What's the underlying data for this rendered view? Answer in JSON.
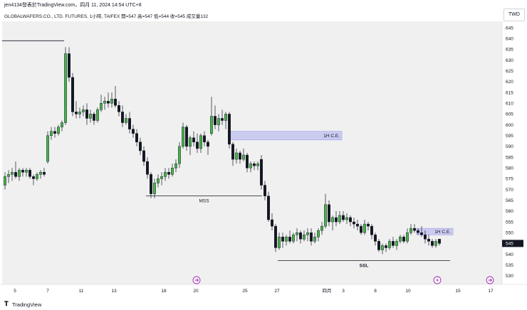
{
  "header": {
    "publisher": "jen4134發表於TradingView.com，四月 11, 2024 14:54 UTC+8",
    "symbol_line": "GLOBALWAFERS.CO., LTD. FUTURES, 1小時, TAIFEX  開=547  高=547  低=544  收=545  成交量132",
    "currency": "TWD"
  },
  "footer": {
    "brand": "TradingView",
    "logo": "tradingview-logo-icon"
  },
  "colors": {
    "up": "#4caf50",
    "down": "#131722",
    "background": "#f0f0f0",
    "zone": "#9e9ef0",
    "price_tag": "#131722"
  },
  "chart_data": {
    "type": "candlestick",
    "ylim": [
      526,
      648
    ],
    "yticks": [
      530,
      535,
      540,
      545,
      550,
      555,
      560,
      565,
      570,
      575,
      580,
      585,
      590,
      595,
      600,
      605,
      610,
      615,
      620,
      625,
      630,
      635,
      640,
      645
    ],
    "xticks": [
      "5",
      "7",
      "11",
      "13",
      "18",
      "20",
      "25",
      "27",
      "四月",
      "3",
      "8",
      "10",
      "15",
      "17"
    ],
    "last_price": 545,
    "last_price_label": "545",
    "levels": [
      {
        "name": "prior-high",
        "y": 639,
        "x_start": 3,
        "x_end": 90,
        "label": ""
      },
      {
        "name": "mss-line",
        "y": 567,
        "x_start": 205,
        "x_end": 368,
        "label": "MSS"
      },
      {
        "name": "ssl-line",
        "y": 537,
        "x_start": 390,
        "x_end": 632,
        "label": "SSL"
      }
    ],
    "zones": [
      {
        "label": "1H C.E.",
        "y_top": 597,
        "y_bottom": 593,
        "x_start": 322,
        "x_end": 480
      },
      {
        "label": "1H C.E.",
        "y_top": 552,
        "y_bottom": 549,
        "x_start": 585,
        "x_end": 636
      }
    ],
    "event_markers": [
      {
        "x": 276,
        "icon": "forward-icon"
      },
      {
        "x": 614,
        "icon": "lightning-icon"
      },
      {
        "x": 688,
        "icon": "forward-icon"
      }
    ],
    "candles": [
      {
        "x": 7,
        "o": 572,
        "h": 578,
        "l": 570,
        "c": 576
      },
      {
        "x": 12,
        "o": 576,
        "h": 579,
        "l": 573,
        "c": 577
      },
      {
        "x": 17,
        "o": 577,
        "h": 580,
        "l": 574,
        "c": 578
      },
      {
        "x": 22,
        "o": 578,
        "h": 583,
        "l": 575,
        "c": 576
      },
      {
        "x": 27,
        "o": 576,
        "h": 580,
        "l": 574,
        "c": 579
      },
      {
        "x": 32,
        "o": 579,
        "h": 580,
        "l": 576,
        "c": 578
      },
      {
        "x": 37,
        "o": 578,
        "h": 580,
        "l": 576,
        "c": 579
      },
      {
        "x": 42,
        "o": 579,
        "h": 580,
        "l": 575,
        "c": 576
      },
      {
        "x": 47,
        "o": 576,
        "h": 577,
        "l": 572,
        "c": 575
      },
      {
        "x": 52,
        "o": 575,
        "h": 578,
        "l": 574,
        "c": 577
      },
      {
        "x": 57,
        "o": 577,
        "h": 579,
        "l": 575,
        "c": 578
      },
      {
        "x": 62,
        "o": 578,
        "h": 580,
        "l": 576,
        "c": 577
      },
      {
        "x": 67,
        "o": 583,
        "h": 597,
        "l": 582,
        "c": 595
      },
      {
        "x": 72,
        "o": 595,
        "h": 599,
        "l": 593,
        "c": 597
      },
      {
        "x": 77,
        "o": 597,
        "h": 599,
        "l": 594,
        "c": 596
      },
      {
        "x": 82,
        "o": 596,
        "h": 600,
        "l": 595,
        "c": 599
      },
      {
        "x": 87,
        "o": 599,
        "h": 602,
        "l": 597,
        "c": 601
      },
      {
        "x": 92,
        "o": 601,
        "h": 636,
        "l": 600,
        "c": 633
      },
      {
        "x": 97,
        "o": 633,
        "h": 636,
        "l": 620,
        "c": 622
      },
      {
        "x": 102,
        "o": 622,
        "h": 624,
        "l": 604,
        "c": 606
      },
      {
        "x": 107,
        "o": 606,
        "h": 611,
        "l": 603,
        "c": 605
      },
      {
        "x": 112,
        "o": 605,
        "h": 608,
        "l": 603,
        "c": 606
      },
      {
        "x": 117,
        "o": 606,
        "h": 609,
        "l": 604,
        "c": 607
      },
      {
        "x": 122,
        "o": 607,
        "h": 610,
        "l": 600,
        "c": 603
      },
      {
        "x": 127,
        "o": 603,
        "h": 607,
        "l": 601,
        "c": 605
      },
      {
        "x": 132,
        "o": 605,
        "h": 606,
        "l": 600,
        "c": 602
      },
      {
        "x": 137,
        "o": 602,
        "h": 608,
        "l": 601,
        "c": 607
      },
      {
        "x": 142,
        "o": 607,
        "h": 614,
        "l": 606,
        "c": 610
      },
      {
        "x": 147,
        "o": 610,
        "h": 613,
        "l": 607,
        "c": 611
      },
      {
        "x": 152,
        "o": 611,
        "h": 615,
        "l": 608,
        "c": 610
      },
      {
        "x": 157,
        "o": 610,
        "h": 615,
        "l": 608,
        "c": 612
      },
      {
        "x": 162,
        "o": 612,
        "h": 618,
        "l": 608,
        "c": 609
      },
      {
        "x": 167,
        "o": 609,
        "h": 611,
        "l": 604,
        "c": 606
      },
      {
        "x": 172,
        "o": 606,
        "h": 609,
        "l": 599,
        "c": 601
      },
      {
        "x": 177,
        "o": 601,
        "h": 605,
        "l": 600,
        "c": 603
      },
      {
        "x": 182,
        "o": 603,
        "h": 606,
        "l": 596,
        "c": 598
      },
      {
        "x": 187,
        "o": 598,
        "h": 600,
        "l": 594,
        "c": 596
      },
      {
        "x": 192,
        "o": 596,
        "h": 598,
        "l": 590,
        "c": 592
      },
      {
        "x": 197,
        "o": 592,
        "h": 594,
        "l": 586,
        "c": 588
      },
      {
        "x": 202,
        "o": 588,
        "h": 590,
        "l": 581,
        "c": 583
      },
      {
        "x": 207,
        "o": 583,
        "h": 585,
        "l": 575,
        "c": 577
      },
      {
        "x": 212,
        "o": 577,
        "h": 578,
        "l": 566,
        "c": 568
      },
      {
        "x": 217,
        "o": 568,
        "h": 575,
        "l": 566,
        "c": 573
      },
      {
        "x": 222,
        "o": 573,
        "h": 577,
        "l": 571,
        "c": 575
      },
      {
        "x": 227,
        "o": 575,
        "h": 578,
        "l": 572,
        "c": 576
      },
      {
        "x": 232,
        "o": 576,
        "h": 580,
        "l": 574,
        "c": 578
      },
      {
        "x": 237,
        "o": 578,
        "h": 580,
        "l": 575,
        "c": 577
      },
      {
        "x": 242,
        "o": 577,
        "h": 582,
        "l": 576,
        "c": 580
      },
      {
        "x": 247,
        "o": 580,
        "h": 584,
        "l": 578,
        "c": 582
      },
      {
        "x": 252,
        "o": 582,
        "h": 592,
        "l": 580,
        "c": 590
      },
      {
        "x": 257,
        "o": 590,
        "h": 601,
        "l": 589,
        "c": 599
      },
      {
        "x": 262,
        "o": 599,
        "h": 600,
        "l": 588,
        "c": 590
      },
      {
        "x": 267,
        "o": 590,
        "h": 595,
        "l": 586,
        "c": 594
      },
      {
        "x": 272,
        "o": 594,
        "h": 597,
        "l": 590,
        "c": 592
      },
      {
        "x": 277,
        "o": 592,
        "h": 596,
        "l": 587,
        "c": 589
      },
      {
        "x": 282,
        "o": 589,
        "h": 596,
        "l": 587,
        "c": 595
      },
      {
        "x": 287,
        "o": 595,
        "h": 597,
        "l": 590,
        "c": 592
      },
      {
        "x": 292,
        "o": 592,
        "h": 593,
        "l": 586,
        "c": 590
      },
      {
        "x": 297,
        "o": 596,
        "h": 613,
        "l": 595,
        "c": 604
      },
      {
        "x": 302,
        "o": 604,
        "h": 609,
        "l": 598,
        "c": 600
      },
      {
        "x": 307,
        "o": 600,
        "h": 605,
        "l": 597,
        "c": 603
      },
      {
        "x": 312,
        "o": 603,
        "h": 607,
        "l": 600,
        "c": 602
      },
      {
        "x": 317,
        "o": 602,
        "h": 606,
        "l": 598,
        "c": 605
      },
      {
        "x": 322,
        "o": 605,
        "h": 606,
        "l": 589,
        "c": 591
      },
      {
        "x": 327,
        "o": 591,
        "h": 592,
        "l": 581,
        "c": 584
      },
      {
        "x": 332,
        "o": 584,
        "h": 589,
        "l": 582,
        "c": 587
      },
      {
        "x": 337,
        "o": 587,
        "h": 588,
        "l": 582,
        "c": 584
      },
      {
        "x": 342,
        "o": 584,
        "h": 589,
        "l": 583,
        "c": 586
      },
      {
        "x": 347,
        "o": 586,
        "h": 587,
        "l": 578,
        "c": 580
      },
      {
        "x": 352,
        "o": 580,
        "h": 583,
        "l": 578,
        "c": 582
      },
      {
        "x": 357,
        "o": 582,
        "h": 583,
        "l": 579,
        "c": 581
      },
      {
        "x": 362,
        "o": 581,
        "h": 583,
        "l": 579,
        "c": 582
      },
      {
        "x": 367,
        "o": 584,
        "h": 586,
        "l": 570,
        "c": 572
      },
      {
        "x": 372,
        "o": 572,
        "h": 574,
        "l": 565,
        "c": 567
      },
      {
        "x": 377,
        "o": 567,
        "h": 569,
        "l": 555,
        "c": 556
      },
      {
        "x": 382,
        "o": 556,
        "h": 559,
        "l": 551,
        "c": 553
      },
      {
        "x": 387,
        "o": 553,
        "h": 554,
        "l": 541,
        "c": 543
      },
      {
        "x": 392,
        "o": 543,
        "h": 550,
        "l": 542,
        "c": 548
      },
      {
        "x": 397,
        "o": 548,
        "h": 550,
        "l": 543,
        "c": 546
      },
      {
        "x": 402,
        "o": 546,
        "h": 549,
        "l": 544,
        "c": 548
      },
      {
        "x": 407,
        "o": 548,
        "h": 551,
        "l": 545,
        "c": 546
      },
      {
        "x": 412,
        "o": 546,
        "h": 550,
        "l": 545,
        "c": 549
      },
      {
        "x": 417,
        "o": 549,
        "h": 552,
        "l": 546,
        "c": 550
      },
      {
        "x": 422,
        "o": 550,
        "h": 551,
        "l": 545,
        "c": 547
      },
      {
        "x": 427,
        "o": 547,
        "h": 551,
        "l": 546,
        "c": 549
      },
      {
        "x": 432,
        "o": 549,
        "h": 552,
        "l": 546,
        "c": 550
      },
      {
        "x": 437,
        "o": 550,
        "h": 552,
        "l": 544,
        "c": 546
      },
      {
        "x": 442,
        "o": 546,
        "h": 550,
        "l": 545,
        "c": 548
      },
      {
        "x": 447,
        "o": 548,
        "h": 552,
        "l": 546,
        "c": 551
      },
      {
        "x": 452,
        "o": 551,
        "h": 555,
        "l": 549,
        "c": 553
      },
      {
        "x": 457,
        "o": 553,
        "h": 568,
        "l": 552,
        "c": 563
      },
      {
        "x": 462,
        "o": 563,
        "h": 565,
        "l": 553,
        "c": 555
      },
      {
        "x": 467,
        "o": 555,
        "h": 558,
        "l": 551,
        "c": 557
      },
      {
        "x": 472,
        "o": 557,
        "h": 560,
        "l": 553,
        "c": 555
      },
      {
        "x": 477,
        "o": 555,
        "h": 560,
        "l": 554,
        "c": 558
      },
      {
        "x": 482,
        "o": 558,
        "h": 560,
        "l": 555,
        "c": 556
      },
      {
        "x": 487,
        "o": 556,
        "h": 559,
        "l": 554,
        "c": 557
      },
      {
        "x": 492,
        "o": 557,
        "h": 558,
        "l": 553,
        "c": 555
      },
      {
        "x": 497,
        "o": 555,
        "h": 557,
        "l": 552,
        "c": 554
      },
      {
        "x": 502,
        "o": 554,
        "h": 556,
        "l": 551,
        "c": 553
      },
      {
        "x": 507,
        "o": 553,
        "h": 554,
        "l": 549,
        "c": 550
      },
      {
        "x": 512,
        "o": 550,
        "h": 556,
        "l": 549,
        "c": 554
      },
      {
        "x": 517,
        "o": 554,
        "h": 555,
        "l": 551,
        "c": 553
      },
      {
        "x": 522,
        "o": 553,
        "h": 554,
        "l": 547,
        "c": 549
      },
      {
        "x": 527,
        "o": 549,
        "h": 550,
        "l": 544,
        "c": 546
      },
      {
        "x": 532,
        "o": 546,
        "h": 547,
        "l": 541,
        "c": 542
      },
      {
        "x": 537,
        "o": 542,
        "h": 545,
        "l": 540,
        "c": 544
      },
      {
        "x": 542,
        "o": 544,
        "h": 545,
        "l": 541,
        "c": 543
      },
      {
        "x": 547,
        "o": 543,
        "h": 547,
        "l": 542,
        "c": 546
      },
      {
        "x": 552,
        "o": 546,
        "h": 548,
        "l": 543,
        "c": 544
      },
      {
        "x": 557,
        "o": 544,
        "h": 547,
        "l": 542,
        "c": 546
      },
      {
        "x": 562,
        "o": 546,
        "h": 549,
        "l": 545,
        "c": 548
      },
      {
        "x": 567,
        "o": 548,
        "h": 549,
        "l": 545,
        "c": 546
      },
      {
        "x": 572,
        "o": 546,
        "h": 552,
        "l": 545,
        "c": 550
      },
      {
        "x": 577,
        "o": 550,
        "h": 554,
        "l": 549,
        "c": 552
      },
      {
        "x": 582,
        "o": 552,
        "h": 554,
        "l": 550,
        "c": 551
      },
      {
        "x": 587,
        "o": 551,
        "h": 552,
        "l": 549,
        "c": 550
      },
      {
        "x": 592,
        "o": 550,
        "h": 553,
        "l": 548,
        "c": 549
      },
      {
        "x": 597,
        "o": 549,
        "h": 551,
        "l": 545,
        "c": 547
      },
      {
        "x": 602,
        "o": 547,
        "h": 549,
        "l": 544,
        "c": 546
      },
      {
        "x": 607,
        "o": 546,
        "h": 547,
        "l": 543,
        "c": 544
      },
      {
        "x": 612,
        "o": 544,
        "h": 547,
        "l": 543,
        "c": 546
      },
      {
        "x": 617,
        "o": 547,
        "h": 547,
        "l": 544,
        "c": 545
      }
    ]
  }
}
